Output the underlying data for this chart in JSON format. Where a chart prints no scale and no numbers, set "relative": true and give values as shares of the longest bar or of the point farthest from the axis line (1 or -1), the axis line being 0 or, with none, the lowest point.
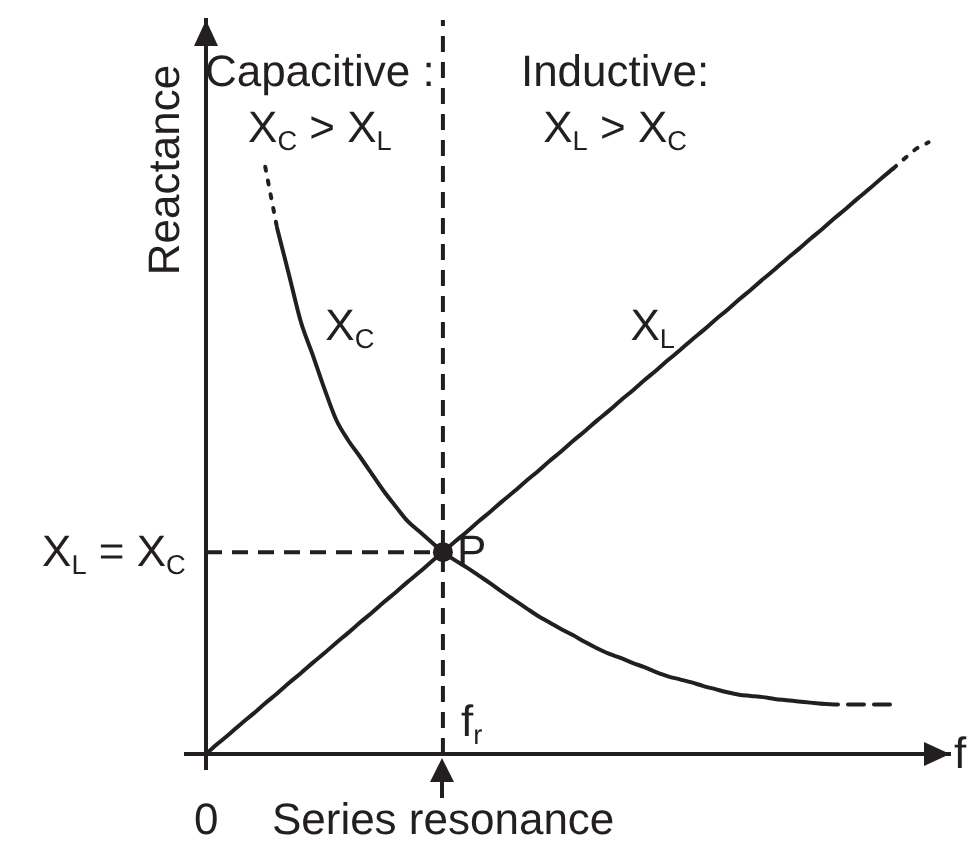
{
  "chart_data": {
    "type": "line",
    "relative": true,
    "xlabel": "f",
    "ylabel": "Reactance",
    "categories": [
      "0",
      null,
      null,
      null,
      null,
      null,
      null,
      null,
      null,
      null,
      null,
      null,
      null,
      null,
      null,
      null,
      null,
      null,
      null,
      null,
      "Series resonance",
      null,
      null,
      null,
      null,
      null,
      null,
      null,
      null,
      null,
      null,
      null,
      null,
      null,
      null,
      null,
      null,
      null,
      null,
      null,
      null,
      null,
      null,
      null,
      null,
      null,
      null,
      null,
      null,
      null,
      null,
      null,
      null,
      null,
      null,
      null,
      null,
      null,
      null,
      null,
      null,
      null,
      null
    ],
    "series": [
      {
        "name": "X$_{C}$",
        "color": "#231f20",
        "values": [
          null,
          null,
          null,
          null,
          null,
          null,
          0.86,
          0.784,
          0.707,
          0.653,
          0.597,
          0.546,
          0.513,
          0.486,
          0.458,
          0.43,
          0.405,
          0.381,
          0.364,
          0.347,
          0.33,
          0.317,
          0.305,
          0.292,
          0.279,
          0.265,
          0.252,
          0.239,
          0.226,
          0.215,
          0.204,
          0.194,
          0.183,
          0.173,
          0.164,
          0.157,
          0.149,
          0.142,
          0.134,
          0.127,
          0.122,
          0.117,
          0.111,
          0.106,
          0.101,
          0.097,
          0.095,
          0.093,
          0.09,
          0.088,
          0.086,
          0.084,
          0.082,
          null,
          null,
          null,
          null,
          null,
          null,
          null,
          null,
          null,
          null
        ]
      },
      {
        "name": "X$_{L}$",
        "color": "#231f20",
        "values": [
          0,
          0.017,
          0.033,
          0.05,
          0.066,
          0.083,
          0.099,
          0.116,
          0.132,
          0.149,
          0.165,
          0.182,
          0.198,
          0.215,
          0.231,
          0.248,
          0.264,
          0.281,
          0.297,
          0.314,
          0.33,
          0.347,
          0.363,
          0.38,
          0.396,
          0.413,
          0.429,
          0.446,
          0.462,
          0.479,
          0.495,
          0.512,
          0.528,
          0.545,
          0.561,
          0.578,
          0.594,
          0.611,
          0.627,
          0.644,
          0.66,
          0.677,
          0.693,
          0.71,
          0.726,
          0.743,
          0.759,
          0.776,
          0.792,
          0.809,
          0.825,
          0.842,
          0.858,
          0.875,
          0.891,
          0.908,
          0.924,
          0.941,
          0.957,
          null,
          null,
          null,
          null
        ]
      },
      {
        "color": "#231f20",
        "line_style": "dotted",
        "values": [
          null,
          null,
          null,
          null,
          null,
          0.96,
          0.86,
          null,
          null,
          null,
          null,
          null,
          null,
          null,
          null,
          null,
          null,
          null,
          null,
          null,
          null,
          null,
          null,
          null,
          null,
          null,
          null,
          null,
          null,
          null,
          null,
          null,
          null,
          null,
          null,
          null,
          null,
          null,
          null,
          null,
          null,
          null,
          null,
          null,
          null,
          null,
          null,
          null,
          null,
          null,
          null,
          null,
          null,
          null,
          null,
          null,
          null,
          null,
          null,
          null,
          null,
          null,
          null
        ]
      },
      {
        "color": "#231f20",
        "line_style": "dashed",
        "values": [
          null,
          null,
          null,
          null,
          null,
          null,
          null,
          null,
          null,
          null,
          null,
          null,
          null,
          null,
          null,
          null,
          null,
          null,
          null,
          null,
          null,
          null,
          null,
          null,
          null,
          null,
          null,
          null,
          null,
          null,
          null,
          null,
          null,
          null,
          null,
          null,
          null,
          null,
          null,
          null,
          null,
          null,
          null,
          null,
          null,
          null,
          null,
          null,
          null,
          null,
          null,
          null,
          0.082,
          0.081,
          0.081,
          0.081,
          0.081,
          0.081,
          0.081,
          null,
          null,
          null,
          null
        ]
      },
      {
        "color": "#231f20",
        "line_style": "dotted",
        "values": [
          null,
          null,
          null,
          null,
          null,
          null,
          null,
          null,
          null,
          null,
          null,
          null,
          null,
          null,
          null,
          null,
          null,
          null,
          null,
          null,
          null,
          null,
          null,
          null,
          null,
          null,
          null,
          null,
          null,
          null,
          null,
          null,
          null,
          null,
          null,
          null,
          null,
          null,
          null,
          null,
          null,
          null,
          null,
          null,
          null,
          null,
          null,
          null,
          null,
          null,
          null,
          null,
          null,
          null,
          null,
          null,
          null,
          null,
          0.957,
          0.974,
          0.99,
          1,
          null
        ]
      },
      {
        "type": "scatter",
        "color": "#231f20",
        "marker": "circle",
        "values": [
          null,
          null,
          null,
          null,
          null,
          null,
          null,
          null,
          null,
          null,
          null,
          null,
          null,
          null,
          null,
          null,
          null,
          null,
          null,
          null,
          0.33,
          null,
          null,
          null,
          null,
          null,
          null,
          null,
          null,
          null,
          null,
          null,
          null,
          null,
          null,
          null,
          null,
          null,
          null,
          null,
          null,
          null,
          null,
          null,
          null,
          null,
          null,
          null,
          null,
          null,
          null,
          null,
          null,
          null,
          null,
          null,
          null,
          null,
          null,
          null,
          null,
          null,
          null
        ]
      }
    ],
    "ref_lines": [
      {
        "axis": "x",
        "value": "Series resonance",
        "label": "f$_{r}$",
        "line_style": "dashed"
      },
      {
        "axis": "y",
        "value": 0.33,
        "label": "X$_{L}$ = X$_{C}$",
        "line_style": "dashed"
      }
    ],
    "annotations": [
      "Capacitive :\nX$_{C}$ > X$_{L}$",
      "Inductive:\nX$_{L}$ > X$_{C}$",
      {
        "text": "P",
        "x": "Series resonance",
        "y": 0.33
      }
    ]
  }
}
